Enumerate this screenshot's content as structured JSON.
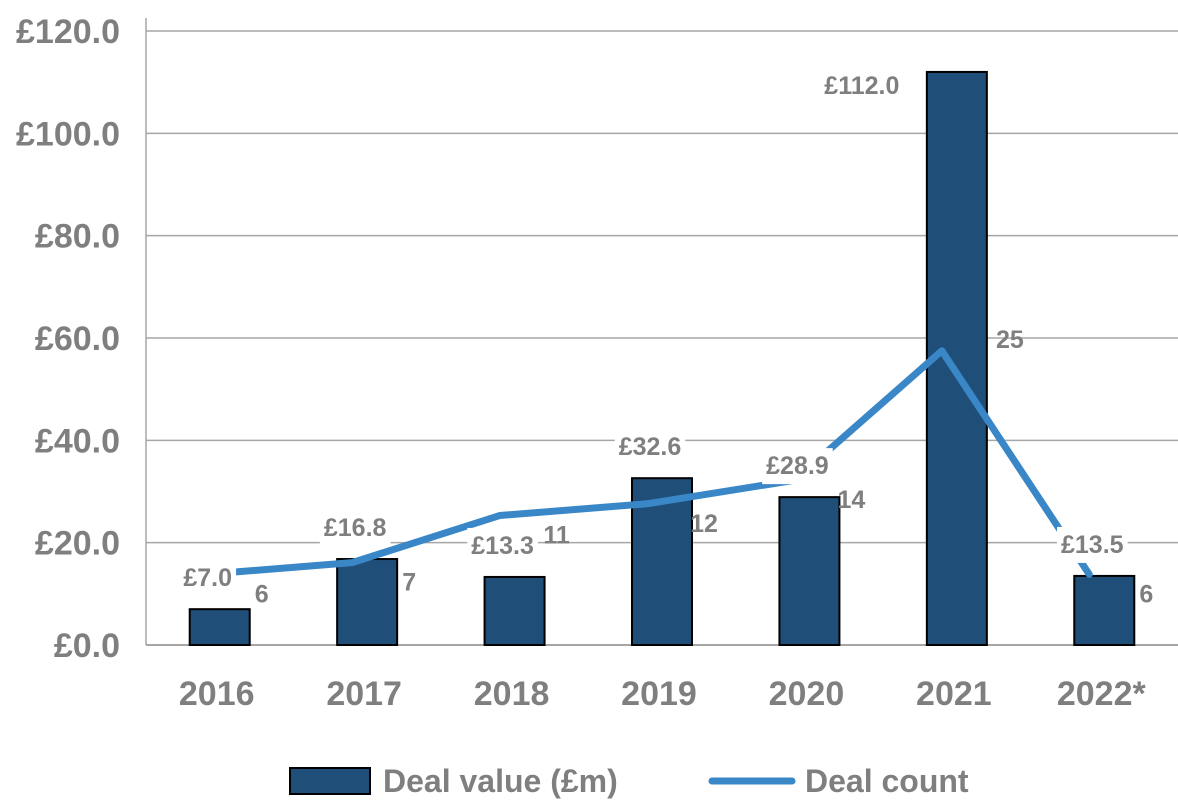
{
  "chart_data": {
    "type": "bar",
    "categories": [
      "2016",
      "2017",
      "2018",
      "2019",
      "2020",
      "2021",
      "2022*"
    ],
    "series": [
      {
        "name": "Deal value (£m)",
        "type": "bar",
        "values": [
          7.0,
          16.8,
          13.3,
          32.6,
          28.9,
          112.0,
          13.5
        ],
        "labels": [
          "£7.0",
          "£16.8",
          "£13.3",
          "£32.6",
          "£28.9",
          "£112.0",
          "£13.5"
        ],
        "color": "#1f4e79"
      },
      {
        "name": "Deal count",
        "type": "line",
        "values": [
          6,
          7,
          11,
          12,
          14,
          25,
          6
        ],
        "labels": [
          "6",
          "7",
          "11",
          "12",
          "14",
          "25",
          "6"
        ],
        "color": "#3a87c8"
      }
    ],
    "yticks": [
      "£0.0",
      "£20.0",
      "£40.0",
      "£60.0",
      "£80.0",
      "£100.0",
      "£120.0"
    ],
    "ylim": [
      0,
      120
    ],
    "grid": true,
    "legend_position": "bottom"
  }
}
